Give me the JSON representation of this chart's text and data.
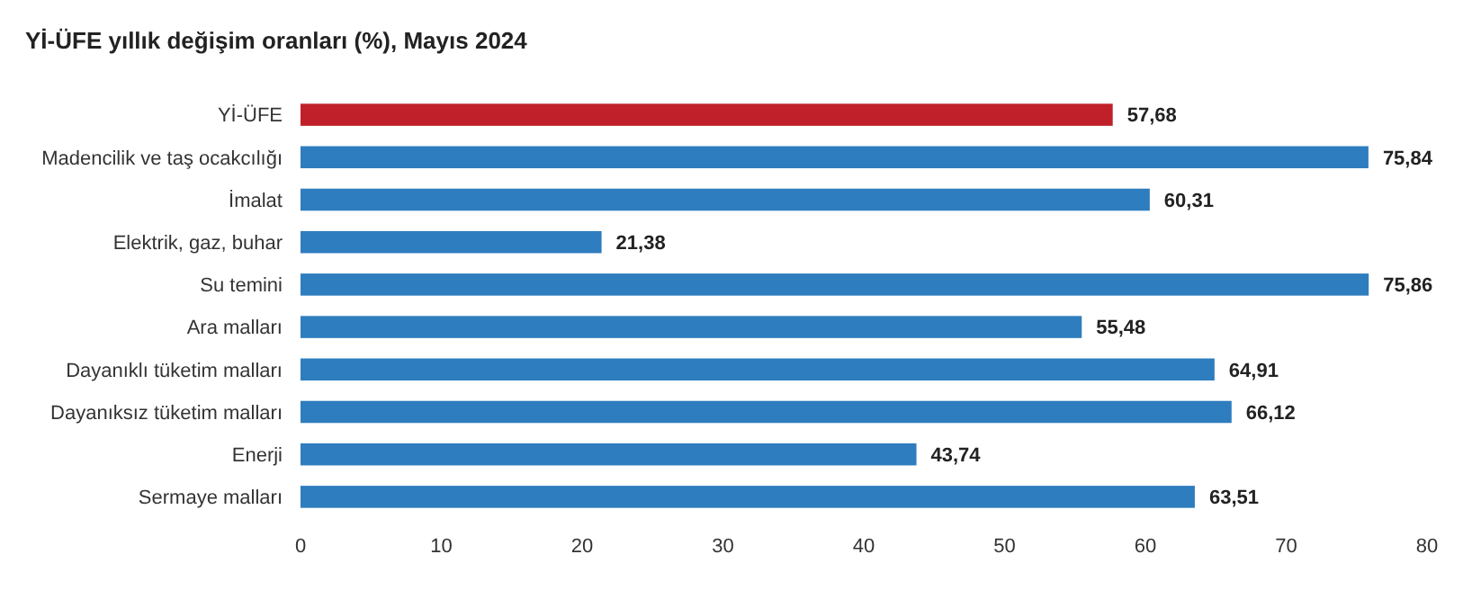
{
  "chart_data": {
    "type": "bar",
    "orientation": "horizontal",
    "title": "Yİ-ÜFE yıllık değişim oranları (%), Mayıs 2024",
    "categories": [
      "Yİ-ÜFE",
      "Madencilik ve taş ocakcılığı",
      "İmalat",
      "Elektrik, gaz, buhar",
      "Su temini",
      "Ara malları",
      "Dayanıklı tüketim malları",
      "Dayanıksız tüketim malları",
      "Enerji",
      "Sermaye malları"
    ],
    "values": [
      57.68,
      75.84,
      60.31,
      21.38,
      75.86,
      55.48,
      64.91,
      66.12,
      43.74,
      63.51
    ],
    "colors": [
      "#c0202a",
      "#2e7dbe",
      "#2e7dbe",
      "#2e7dbe",
      "#2e7dbe",
      "#2e7dbe",
      "#2e7dbe",
      "#2e7dbe",
      "#2e7dbe",
      "#2e7dbe"
    ],
    "value_labels": [
      "57,68",
      "75,84",
      "60,31",
      "21,38",
      "75,86",
      "55,48",
      "64,91",
      "66,12",
      "43,74",
      "63,51"
    ],
    "xlim": [
      0,
      80
    ],
    "xticks": [
      0,
      10,
      20,
      30,
      40,
      50,
      60,
      70,
      80
    ],
    "grid": false
  }
}
